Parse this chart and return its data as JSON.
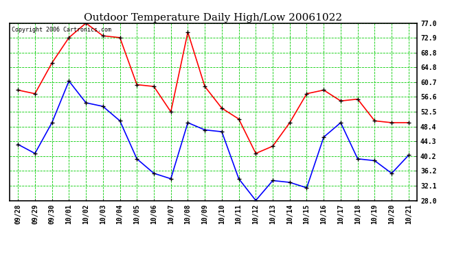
{
  "title": "Outdoor Temperature Daily High/Low 20061022",
  "copyright": "Copyright 2006 Cartronics.com",
  "x_labels": [
    "09/28",
    "09/29",
    "09/30",
    "10/01",
    "10/02",
    "10/03",
    "10/04",
    "10/05",
    "10/06",
    "10/07",
    "10/08",
    "10/09",
    "10/10",
    "10/11",
    "10/12",
    "10/13",
    "10/14",
    "10/15",
    "10/16",
    "10/17",
    "10/18",
    "10/19",
    "10/20",
    "10/21"
  ],
  "high_temps": [
    58.5,
    57.5,
    66.0,
    73.0,
    77.0,
    73.5,
    73.0,
    60.0,
    59.5,
    52.5,
    74.5,
    59.5,
    53.5,
    50.5,
    41.0,
    43.0,
    49.5,
    57.5,
    58.5,
    55.5,
    56.0,
    50.0,
    49.5,
    49.5
  ],
  "low_temps": [
    43.5,
    41.0,
    49.5,
    61.0,
    55.0,
    54.0,
    50.0,
    39.5,
    35.5,
    34.0,
    49.5,
    47.5,
    47.0,
    34.0,
    28.0,
    33.5,
    33.0,
    31.5,
    45.5,
    49.5,
    39.5,
    39.0,
    35.5,
    40.5
  ],
  "high_color": "#ff0000",
  "low_color": "#0000ff",
  "marker_color": "#000000",
  "bg_color": "#ffffff",
  "grid_color": "#00cc00",
  "ylim": [
    28.0,
    77.0
  ],
  "yticks": [
    28.0,
    32.1,
    36.2,
    40.2,
    44.3,
    48.4,
    52.5,
    56.6,
    60.7,
    64.8,
    68.8,
    72.9,
    77.0
  ],
  "title_fontsize": 11,
  "copyright_fontsize": 6,
  "axis_fontsize": 7,
  "fig_width": 6.9,
  "fig_height": 3.75,
  "dpi": 100
}
